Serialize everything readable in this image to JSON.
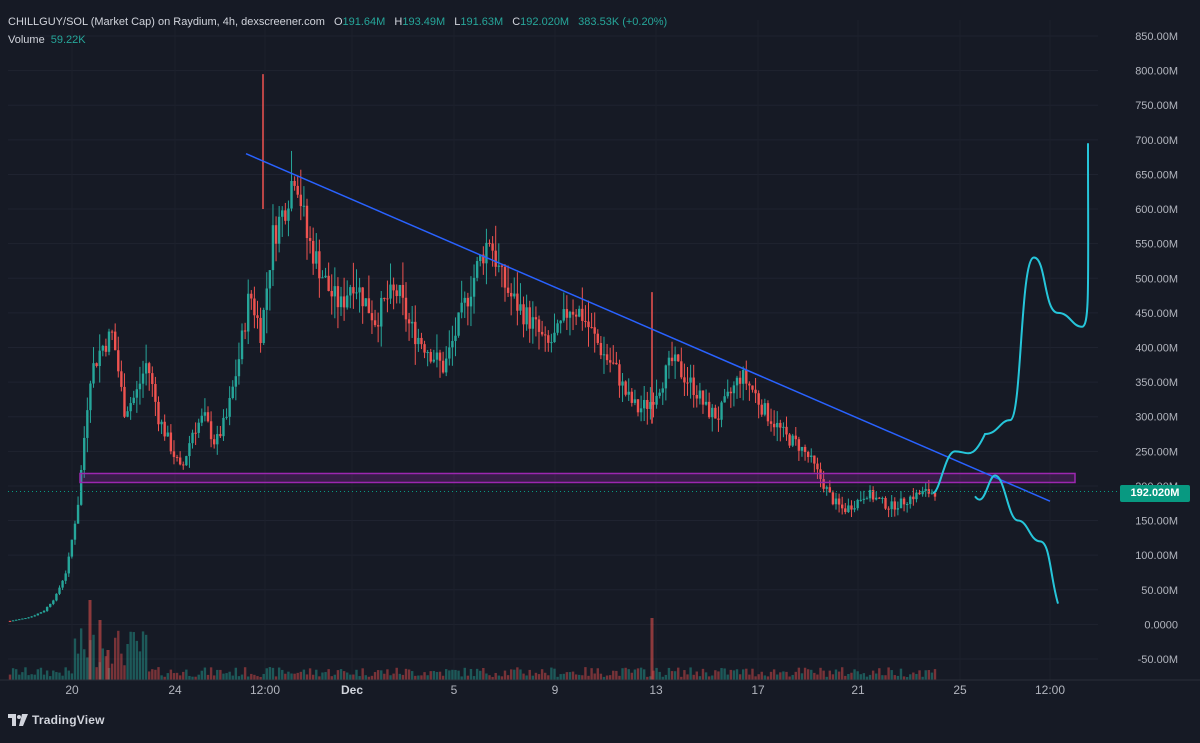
{
  "legend": {
    "symbol": "CHILLGUY/SOL (Market Cap) on Raydium, 4h, dexscreener.com",
    "open_label": "O",
    "open": "191.64M",
    "high_label": "H",
    "high": "193.49M",
    "low_label": "L",
    "low": "191.63M",
    "close_label": "C",
    "close": "192.020M",
    "change": "383.53K (+0.20%)",
    "volume_label": "Volume",
    "volume": "59.22K"
  },
  "price_tag": "192.020M",
  "branding": "TradingView",
  "colors": {
    "background": "#161a25",
    "up": "#26a69a",
    "down": "#ef5350",
    "trendline": "#2962ff",
    "zone": "#9c27b0",
    "projection": "#26c6da"
  },
  "chart_data": {
    "type": "candlestick",
    "title": "CHILLGUY/SOL (Market Cap) on Raydium, 4h, dexscreener.com",
    "y_axis": {
      "ticks": [
        "850.00M",
        "800.00M",
        "750.00M",
        "700.00M",
        "650.00M",
        "600.00M",
        "550.00M",
        "500.00M",
        "450.00M",
        "400.00M",
        "350.00M",
        "300.00M",
        "250.00M",
        "200.00M",
        "150.00M",
        "100.00M",
        "50.00M",
        "0.0000",
        "-50.00M"
      ],
      "tick_values": [
        850,
        800,
        750,
        700,
        650,
        600,
        550,
        500,
        450,
        400,
        350,
        300,
        250,
        200,
        150,
        100,
        50,
        0,
        -50
      ],
      "unit": "M",
      "range": [
        -65,
        860
      ]
    },
    "x_axis": {
      "ticks": [
        {
          "label": "20",
          "bold": false
        },
        {
          "label": "24",
          "bold": false
        },
        {
          "label": "12:00",
          "bold": false
        },
        {
          "label": "Dec",
          "bold": true
        },
        {
          "label": "5",
          "bold": false
        },
        {
          "label": "9",
          "bold": false
        },
        {
          "label": "13",
          "bold": false
        },
        {
          "label": "17",
          "bold": false
        },
        {
          "label": "21",
          "bold": false
        },
        {
          "label": "25",
          "bold": false
        },
        {
          "label": "12:00",
          "bold": false
        }
      ]
    },
    "current_price": 192.02,
    "peak_high": 795,
    "trendline": {
      "from": 680,
      "to": 178
    },
    "resistance_zone": [
      205,
      218
    ],
    "projection_up": [
      190,
      250,
      275,
      295,
      530,
      450,
      430,
      695
    ],
    "projection_down": [
      185,
      215,
      150,
      120,
      30
    ],
    "price_path": [
      5,
      8,
      12,
      20,
      40,
      80,
      180,
      360,
      400,
      420,
      310,
      330,
      380,
      300,
      260,
      220,
      280,
      300,
      260,
      300,
      380,
      480,
      420,
      560,
      600,
      660,
      560,
      520,
      480,
      460,
      500,
      470,
      440,
      470,
      480,
      430,
      410,
      390,
      370,
      420,
      470,
      520,
      560,
      500,
      470,
      450,
      430,
      400,
      420,
      460,
      450,
      420,
      390,
      370,
      330,
      310,
      320,
      350,
      380,
      360,
      340,
      310,
      300,
      330,
      360,
      340,
      310,
      290,
      270,
      260,
      240,
      210,
      180,
      165,
      175,
      190,
      180,
      170,
      175,
      185,
      190,
      192
    ]
  }
}
